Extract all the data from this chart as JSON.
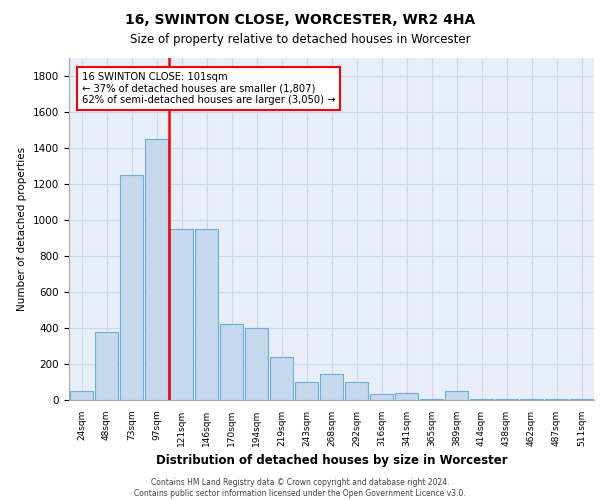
{
  "title": "16, SWINTON CLOSE, WORCESTER, WR2 4HA",
  "subtitle": "Size of property relative to detached houses in Worcester",
  "xlabel": "Distribution of detached houses by size in Worcester",
  "ylabel": "Number of detached properties",
  "categories": [
    "24sqm",
    "48sqm",
    "73sqm",
    "97sqm",
    "121sqm",
    "146sqm",
    "170sqm",
    "194sqm",
    "219sqm",
    "243sqm",
    "268sqm",
    "292sqm",
    "316sqm",
    "341sqm",
    "365sqm",
    "389sqm",
    "414sqm",
    "438sqm",
    "462sqm",
    "487sqm",
    "511sqm"
  ],
  "values": [
    50,
    375,
    1250,
    1450,
    950,
    950,
    420,
    400,
    240,
    100,
    145,
    100,
    35,
    40,
    5,
    50,
    5,
    5,
    5,
    5,
    5
  ],
  "bar_color": "#c5d8ee",
  "bar_edge_color": "#6baed6",
  "annotation_text": "16 SWINTON CLOSE: 101sqm\n← 37% of detached houses are smaller (1,807)\n62% of semi-detached houses are larger (3,050) →",
  "ylim": [
    0,
    1900
  ],
  "yticks": [
    0,
    200,
    400,
    600,
    800,
    1000,
    1200,
    1400,
    1600,
    1800
  ],
  "grid_color": "#d0d8e8",
  "background_color": "#e8eef8",
  "footer_line1": "Contains HM Land Registry data © Crown copyright and database right 2024.",
  "footer_line2": "Contains public sector information licensed under the Open Government Licence v3.0."
}
